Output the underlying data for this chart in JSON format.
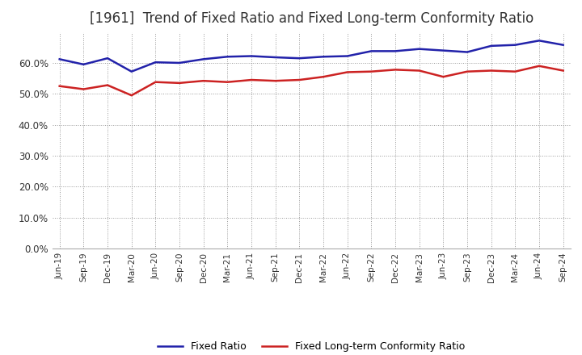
{
  "title": "[1961]  Trend of Fixed Ratio and Fixed Long-term Conformity Ratio",
  "title_fontsize": 12,
  "xlabels": [
    "Jun-19",
    "Sep-19",
    "Dec-19",
    "Mar-20",
    "Jun-20",
    "Sep-20",
    "Dec-20",
    "Mar-21",
    "Jun-21",
    "Sep-21",
    "Dec-21",
    "Mar-22",
    "Jun-22",
    "Sep-22",
    "Dec-22",
    "Mar-23",
    "Jun-23",
    "Sep-23",
    "Dec-23",
    "Mar-24",
    "Jun-24",
    "Sep-24"
  ],
  "fixed_ratio": [
    61.2,
    59.5,
    61.5,
    57.2,
    60.2,
    60.0,
    61.2,
    62.0,
    62.2,
    61.8,
    61.5,
    62.0,
    62.2,
    63.8,
    63.8,
    64.5,
    64.0,
    63.5,
    65.5,
    65.8,
    67.2,
    65.8
  ],
  "fixed_lt_ratio": [
    52.5,
    51.5,
    52.8,
    49.5,
    53.8,
    53.5,
    54.2,
    53.8,
    54.5,
    54.2,
    54.5,
    55.5,
    57.0,
    57.2,
    57.8,
    57.5,
    55.5,
    57.2,
    57.5,
    57.2,
    59.0,
    57.5
  ],
  "blue_color": "#2222aa",
  "red_color": "#cc2222",
  "grid_color": "#999999",
  "bg_color": "#ffffff",
  "ylim": [
    0,
    70
  ],
  "yticks": [
    0,
    10,
    20,
    30,
    40,
    50,
    60
  ],
  "legend_fixed_ratio": "Fixed Ratio",
  "legend_fixed_lt_ratio": "Fixed Long-term Conformity Ratio"
}
